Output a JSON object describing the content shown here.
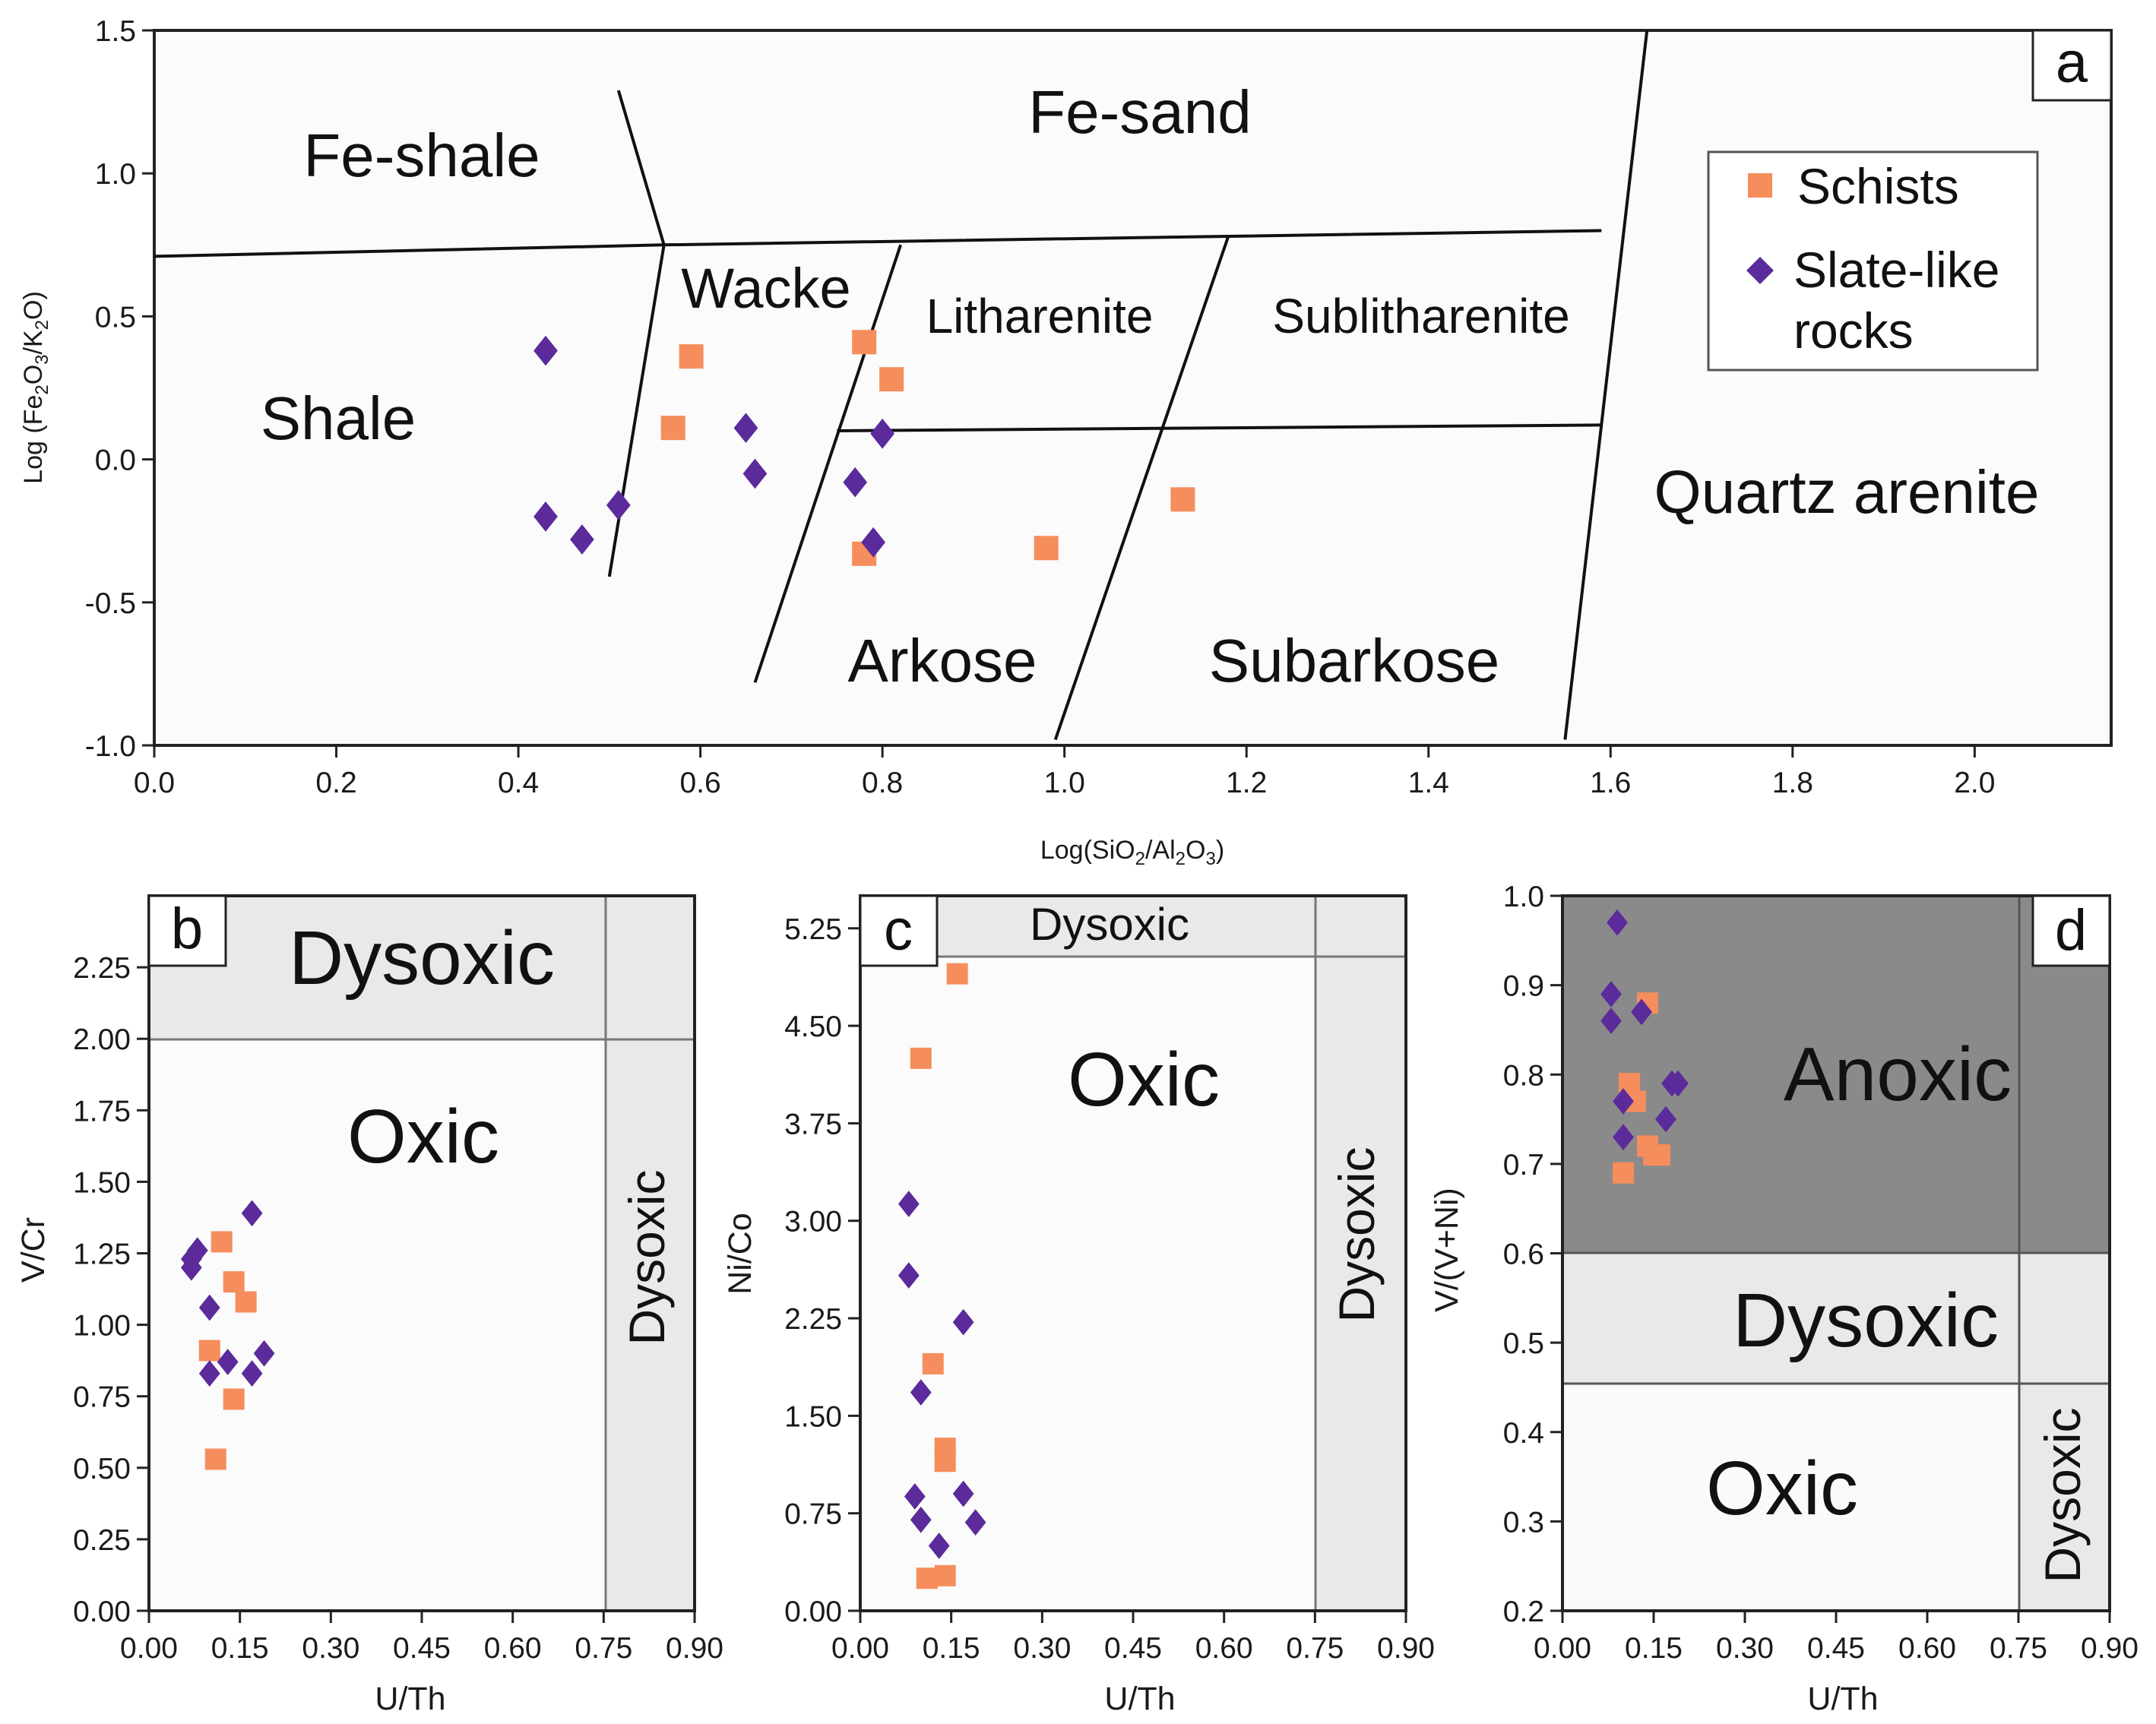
{
  "chart_data": [
    {
      "id": "a",
      "type": "scatter",
      "panel_label": "a",
      "xlabel": "Log(SiO2/Al2O3)",
      "ylabel": "Log (Fe2O3/K2O)",
      "xlim": [
        0.0,
        2.15
      ],
      "ylim": [
        -1.0,
        1.5
      ],
      "xticks": [
        "0.0",
        "0.2",
        "0.4",
        "0.6",
        "0.8",
        "1.0",
        "1.2",
        "1.4",
        "1.6",
        "1.8",
        "2.0"
      ],
      "yticks": [
        "-1.0",
        "-0.5",
        "0.0",
        "0.5",
        "1.0",
        "1.5"
      ],
      "regions": [
        "Fe-shale",
        "Fe-sand",
        "Wacke",
        "Litharenite",
        "Sublitharenite",
        "Shale",
        "Quartz arenite",
        "Arkose",
        "Subarkose"
      ],
      "boundaries": [
        [
          [
            0.0,
            0.71
          ],
          [
            0.56,
            0.75
          ],
          [
            1.59,
            0.8
          ]
        ],
        [
          [
            0.51,
            1.29
          ],
          [
            0.56,
            0.75
          ]
        ],
        [
          [
            0.5,
            -0.41
          ],
          [
            0.56,
            0.75
          ]
        ],
        [
          [
            0.66,
            -0.78
          ],
          [
            0.82,
            0.75
          ]
        ],
        [
          [
            0.75,
            0.1
          ],
          [
            1.59,
            0.12
          ]
        ],
        [
          [
            0.99,
            -0.98
          ],
          [
            1.18,
            0.78
          ]
        ],
        [
          [
            1.55,
            -0.98
          ],
          [
            1.64,
            1.5
          ]
        ]
      ],
      "legend": [
        "Schists",
        "Slate-like rocks"
      ],
      "legend_position": "top-right",
      "series": [
        {
          "name": "Schists",
          "marker": "square",
          "color": "#F58D5C",
          "points": [
            [
              0.59,
              0.36
            ],
            [
              0.57,
              0.11
            ],
            [
              0.78,
              0.41
            ],
            [
              0.81,
              0.28
            ],
            [
              0.78,
              -0.33
            ],
            [
              0.98,
              -0.31
            ],
            [
              1.13,
              -0.14
            ]
          ]
        },
        {
          "name": "Slate-like rocks",
          "marker": "diamond",
          "color": "#5B2A9B",
          "points": [
            [
              0.43,
              0.38
            ],
            [
              0.43,
              -0.2
            ],
            [
              0.47,
              -0.28
            ],
            [
              0.51,
              -0.16
            ],
            [
              0.65,
              0.11
            ],
            [
              0.66,
              -0.05
            ],
            [
              0.77,
              -0.08
            ],
            [
              0.8,
              0.09
            ],
            [
              0.79,
              -0.29
            ]
          ]
        }
      ]
    },
    {
      "id": "b",
      "type": "scatter",
      "panel_label": "b",
      "xlabel": "U/Th",
      "ylabel": "V/Cr",
      "xlim": [
        0.0,
        0.9
      ],
      "ylim": [
        0.0,
        2.5
      ],
      "xticks": [
        "0.00",
        "0.15",
        "0.30",
        "0.45",
        "0.60",
        "0.75",
        "0.90"
      ],
      "yticks": [
        "0.00",
        "0.25",
        "0.50",
        "0.75",
        "1.00",
        "1.25",
        "1.50",
        "1.75",
        "2.00",
        "2.25"
      ],
      "regions": [
        "Dysoxic",
        "Oxic",
        "Dysoxic"
      ],
      "series": [
        {
          "name": "Schists",
          "marker": "square",
          "color": "#F58D5C",
          "points": [
            [
              0.12,
              1.29
            ],
            [
              0.14,
              1.15
            ],
            [
              0.16,
              1.08
            ],
            [
              0.1,
              0.91
            ],
            [
              0.14,
              0.74
            ],
            [
              0.11,
              0.53
            ]
          ]
        },
        {
          "name": "Slate-like rocks",
          "marker": "diamond",
          "color": "#5B2A9B",
          "points": [
            [
              0.08,
              1.26
            ],
            [
              0.07,
              1.23
            ],
            [
              0.07,
              1.2
            ],
            [
              0.1,
              1.06
            ],
            [
              0.17,
              1.39
            ],
            [
              0.13,
              0.87
            ],
            [
              0.1,
              0.83
            ],
            [
              0.17,
              0.83
            ],
            [
              0.19,
              0.9
            ]
          ]
        }
      ]
    },
    {
      "id": "c",
      "type": "scatter",
      "panel_label": "c",
      "xlabel": "U/Th",
      "ylabel": "Ni/Co",
      "xlim": [
        0.0,
        0.9
      ],
      "ylim": [
        0.0,
        5.5
      ],
      "xticks": [
        "0.00",
        "0.15",
        "0.30",
        "0.45",
        "0.60",
        "0.75",
        "0.90"
      ],
      "yticks": [
        "0.00",
        "0.75",
        "1.50",
        "2.25",
        "3.00",
        "3.75",
        "4.50",
        "5.25"
      ],
      "regions": [
        "Dysoxic",
        "Oxic",
        "Dysoxic"
      ],
      "series": [
        {
          "name": "Schists",
          "marker": "square",
          "color": "#F58D5C",
          "points": [
            [
              0.16,
              4.9
            ],
            [
              0.1,
              4.25
            ],
            [
              0.12,
              1.9
            ],
            [
              0.14,
              1.25
            ],
            [
              0.14,
              1.15
            ],
            [
              0.11,
              0.25
            ],
            [
              0.14,
              0.27
            ]
          ]
        },
        {
          "name": "Slate-like rocks",
          "marker": "diamond",
          "color": "#5B2A9B",
          "points": [
            [
              0.08,
              3.13
            ],
            [
              0.08,
              2.58
            ],
            [
              0.17,
              2.22
            ],
            [
              0.1,
              1.68
            ],
            [
              0.09,
              0.88
            ],
            [
              0.1,
              0.7
            ],
            [
              0.13,
              0.5
            ],
            [
              0.17,
              0.9
            ],
            [
              0.19,
              0.68
            ]
          ]
        }
      ]
    },
    {
      "id": "d",
      "type": "scatter",
      "panel_label": "d",
      "xlabel": "U/Th",
      "ylabel": "V/(V+Ni)",
      "xlim": [
        0.0,
        0.9
      ],
      "ylim": [
        0.2,
        1.0
      ],
      "xticks": [
        "0.00",
        "0.15",
        "0.30",
        "0.45",
        "0.60",
        "0.75",
        "0.90"
      ],
      "yticks": [
        "0.2",
        "0.3",
        "0.4",
        "0.5",
        "0.6",
        "0.7",
        "0.8",
        "0.9",
        "1.0"
      ],
      "regions": [
        "Anoxic",
        "Dysoxic",
        "Oxic",
        "Dysoxic"
      ],
      "colors": {
        "anoxic": "#8A8A8A",
        "dysoxic": "#E9E9E9",
        "oxic": "#FAFAFA"
      },
      "series": [
        {
          "name": "Schists",
          "marker": "square",
          "color": "#F58D5C",
          "points": [
            [
              0.14,
              0.88
            ],
            [
              0.11,
              0.79
            ],
            [
              0.12,
              0.77
            ],
            [
              0.14,
              0.72
            ],
            [
              0.15,
              0.71
            ],
            [
              0.1,
              0.69
            ],
            [
              0.16,
              0.71
            ]
          ]
        },
        {
          "name": "Slate-like rocks",
          "marker": "diamond",
          "color": "#5B2A9B",
          "points": [
            [
              0.09,
              0.97
            ],
            [
              0.08,
              0.89
            ],
            [
              0.08,
              0.86
            ],
            [
              0.13,
              0.87
            ],
            [
              0.18,
              0.79
            ],
            [
              0.19,
              0.79
            ],
            [
              0.1,
              0.77
            ],
            [
              0.17,
              0.75
            ],
            [
              0.1,
              0.73
            ]
          ]
        }
      ]
    }
  ]
}
